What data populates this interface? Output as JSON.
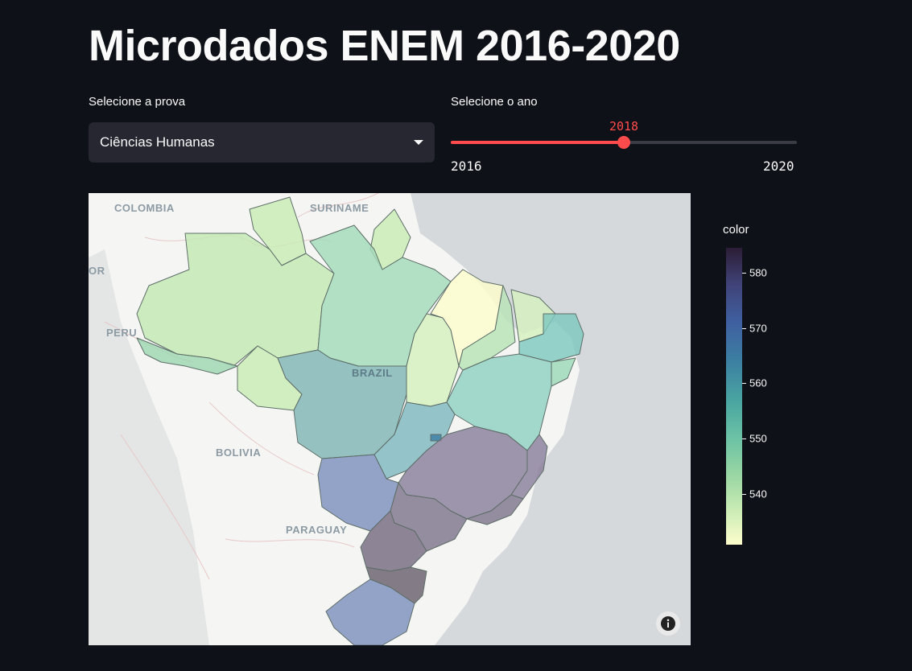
{
  "title": "Microdados ENEM 2016-2020",
  "prova_select": {
    "label": "Selecione a prova",
    "value": "Ciências Humanas"
  },
  "ano_slider": {
    "label": "Selecione o ano",
    "value": "2018",
    "min": "2016",
    "max": "2020",
    "fraction": 0.5,
    "color": "#ff4b4b"
  },
  "map": {
    "labels": {
      "colombia": "COLOMBIA",
      "suriname": "SURINAME",
      "peru": "PERU",
      "brazil": "BRAZIL",
      "bolivia": "BOLIVIA",
      "paraguay": "PARAGUAY",
      "edge": "OR"
    },
    "colorbar": {
      "title": "color",
      "ticks": [
        "580",
        "570",
        "560",
        "550",
        "540"
      ]
    }
  }
}
